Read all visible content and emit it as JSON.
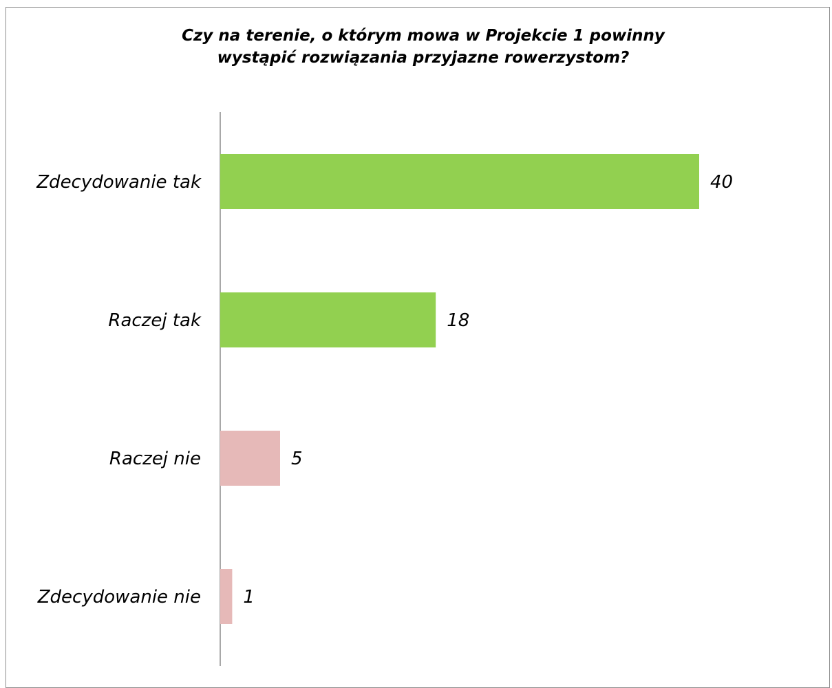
{
  "chart_data": {
    "type": "bar",
    "orientation": "horizontal",
    "title_lines": [
      "Czy na terenie, o którym mowa w Projekcie 1 powinny",
      "wystąpić rozwiązania przyjazne rowerzystom?"
    ],
    "title": "Czy na terenie, o którym mowa w Projekcie 1 powinny wystąpić rozwiązania przyjazne rowerzystom?",
    "xlabel": "",
    "ylabel": "",
    "categories": [
      "Zdecydowanie tak",
      "Raczej tak",
      "Raczej nie",
      "Zdecydowanie nie"
    ],
    "values": [
      40,
      18,
      5,
      1
    ],
    "xlim": [
      0,
      50
    ],
    "grid": false,
    "legend": "none",
    "colors": {
      "positive": "#92d050",
      "negative": "#e6b9b8",
      "axis": "#8c8c8c"
    },
    "bar_colors": [
      "#92d050",
      "#92d050",
      "#e6b9b8",
      "#e6b9b8"
    ]
  }
}
